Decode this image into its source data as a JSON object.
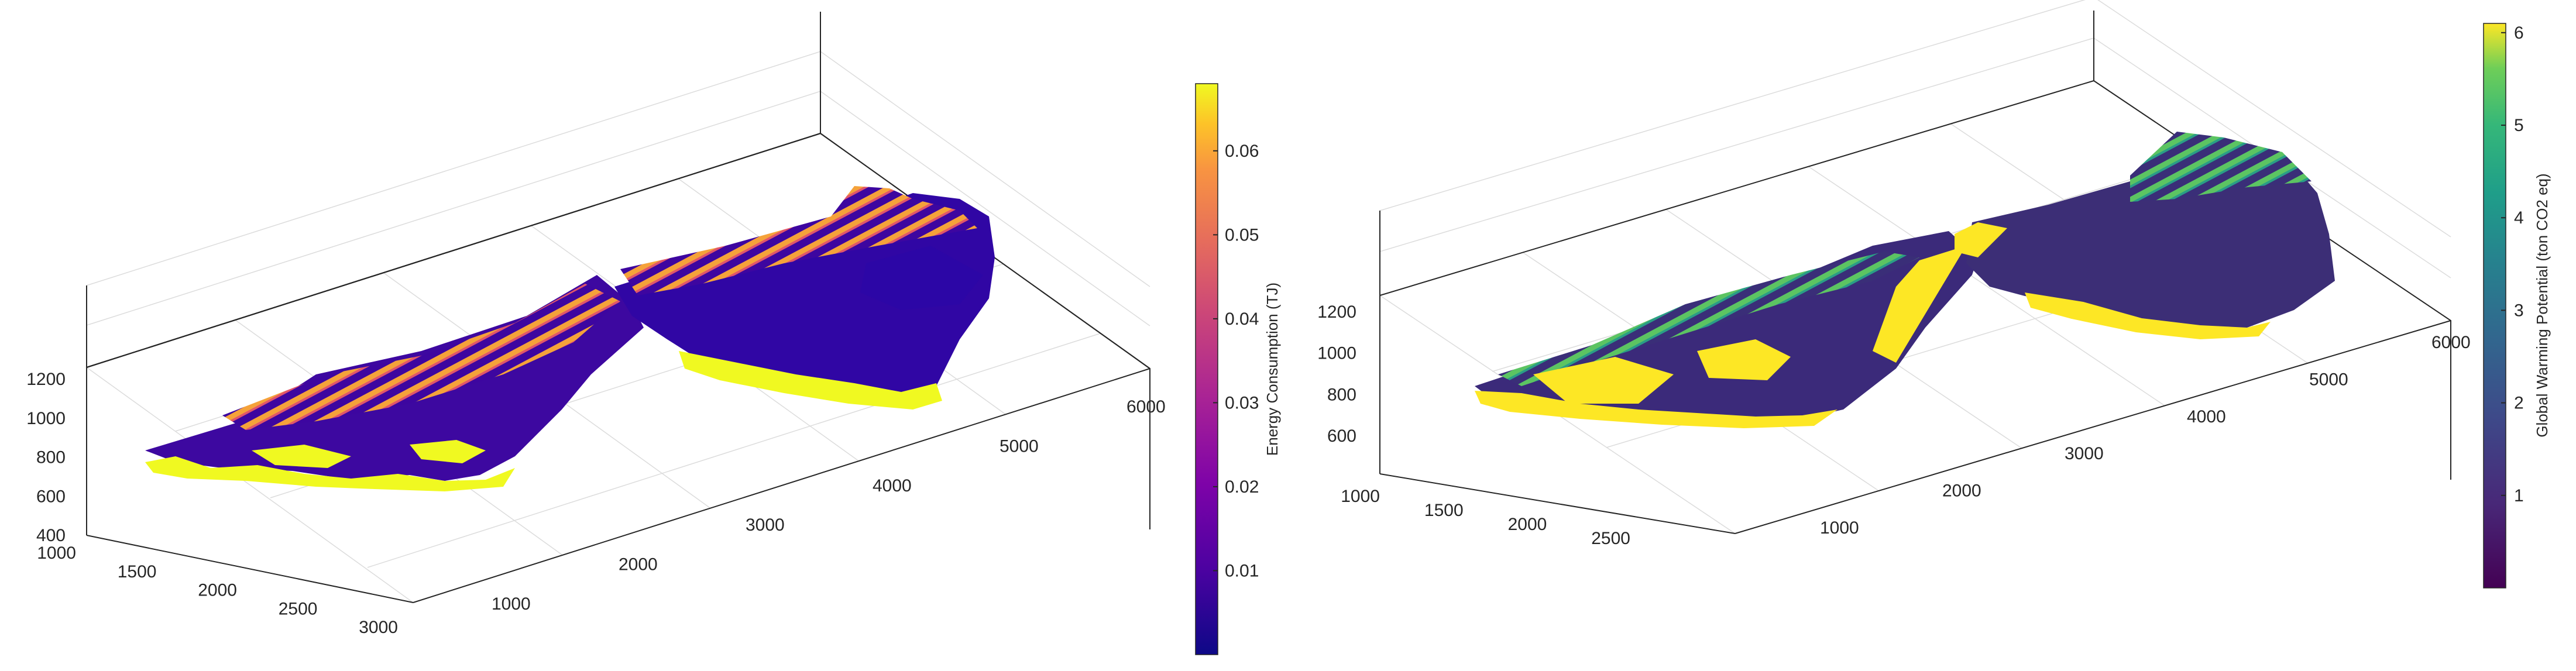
{
  "chart_data": [
    {
      "type": "scatter3d",
      "colorbar": {
        "label": "Energy Consumption (TJ)",
        "ticks": [
          "0.01",
          "0.02",
          "0.03",
          "0.04",
          "0.05",
          "0.06"
        ],
        "range": [
          0.0,
          0.068
        ],
        "colormap": "plasma"
      },
      "axes": {
        "x_ticks": [
          "1000",
          "1500",
          "2000",
          "2500",
          "3000"
        ],
        "y_ticks": [
          "1000",
          "2000",
          "3000",
          "4000",
          "5000",
          "6000"
        ],
        "z_ticks": [
          "400",
          "600",
          "800",
          "1000",
          "1200"
        ],
        "grid": true
      },
      "colors": {
        "low": "#2a0593",
        "mid": "#cc4778",
        "high": "#f0f921"
      }
    },
    {
      "type": "scatter3d",
      "colorbar": {
        "label": "Global Warming Potential (ton CO2 eq)",
        "ticks": [
          "1",
          "2",
          "3",
          "4",
          "5",
          "6"
        ],
        "range": [
          0.0,
          6.1
        ],
        "colormap": "viridis"
      },
      "axes": {
        "x_ticks": [
          "1000",
          "1500",
          "2000",
          "2500"
        ],
        "y_ticks": [
          "1000",
          "2000",
          "3000",
          "4000",
          "5000",
          "6000"
        ],
        "z_ticks": [
          "600",
          "800",
          "1000",
          "1200"
        ],
        "grid": true
      },
      "colors": {
        "low": "#440154",
        "mid": "#21918c",
        "high": "#fde725"
      }
    }
  ]
}
